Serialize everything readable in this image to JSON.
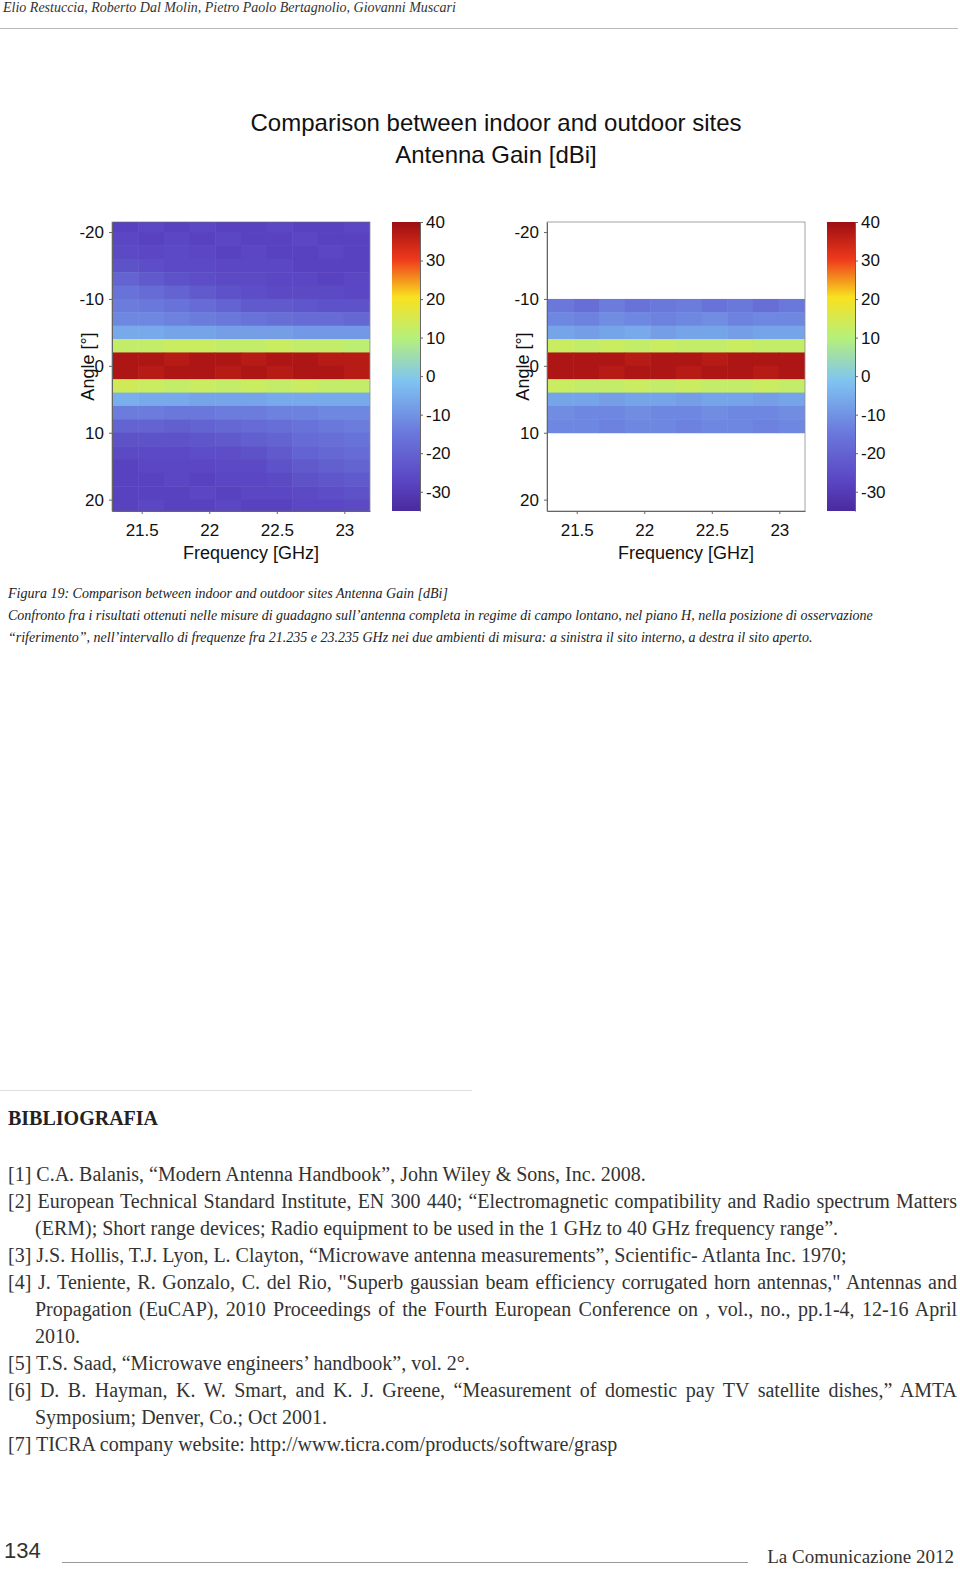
{
  "header": {
    "authors": "Elio Restuccia, Roberto Dal Molin, Pietro Paolo Bertagnolio, Giovanni Muscari"
  },
  "figure": {
    "title": [
      "Comparison between indoor and outdoor sites",
      "Antenna Gain [dBi]"
    ],
    "caption": [
      "Figura 19: Comparison between indoor and outdoor sites Antenna Gain [dBi]",
      "Confronto fra i risultati ottenuti nelle misure di guadagno sull’antenna completa in regime di campo lontano, nel piano H, nella posizione di osservazione",
      "“riferimento”, nell’intervallo di frequenze fra 21.235 e 23.235 GHz nei due ambienti di misura: a sinistra il sito interno, a destra il sito aperto."
    ]
  },
  "chart_data": [
    {
      "type": "heatmap",
      "x_label": "Frequency [GHz]",
      "y_label": "Angle [°]",
      "xlim": [
        21.28,
        23.19
      ],
      "ylim": [
        -21.5,
        21.7
      ],
      "xticks": [
        21.5,
        22,
        22.5,
        23
      ],
      "yticks": [
        -20,
        -10,
        0,
        10,
        20
      ],
      "colorbar_range": [
        -35,
        40
      ],
      "colorbar_ticks": [
        40,
        30,
        20,
        10,
        0,
        -10,
        -20,
        -30
      ],
      "x": [
        21.38,
        21.57,
        21.76,
        21.95,
        22.14,
        22.33,
        22.52,
        22.71,
        22.9,
        23.09
      ],
      "y": [
        -21,
        -19,
        -17,
        -15,
        -13,
        -11,
        -9,
        -7,
        -5,
        -3,
        -1,
        1,
        3,
        5,
        7,
        9,
        11,
        13,
        15,
        17,
        19,
        21
      ],
      "cells": [
        [
          -28,
          -27,
          -28,
          -27,
          -28,
          -28,
          -27,
          -28,
          -28,
          -27
        ],
        [
          -27,
          -28,
          -27,
          -28,
          -27,
          -28,
          -28,
          -27,
          -28,
          -28
        ],
        [
          -26,
          -27,
          -26,
          -27,
          -28,
          -27,
          -28,
          -28,
          -27,
          -28
        ],
        [
          -24,
          -25,
          -26,
          -26,
          -27,
          -27,
          -27,
          -28,
          -28,
          -28
        ],
        [
          -20,
          -22,
          -24,
          -25,
          -26,
          -26,
          -27,
          -27,
          -28,
          -27
        ],
        [
          -16,
          -18,
          -20,
          -22,
          -24,
          -25,
          -26,
          -26,
          -26,
          -27
        ],
        [
          -14,
          -15,
          -16,
          -18,
          -20,
          -22,
          -22,
          -23,
          -24,
          -24
        ],
        [
          -12,
          -12,
          -13,
          -14,
          -15,
          -16,
          -17,
          -18,
          -18,
          -19
        ],
        [
          -6,
          -6,
          -7,
          -7,
          -8,
          -8,
          -8,
          -9,
          -9,
          -9
        ],
        [
          12,
          12,
          13,
          13,
          12,
          12,
          13,
          12,
          12,
          11
        ],
        [
          38,
          38,
          37,
          38,
          38,
          37,
          38,
          38,
          37,
          37
        ],
        [
          38,
          37,
          38,
          38,
          37,
          38,
          37,
          38,
          38,
          37
        ],
        [
          14,
          13,
          12,
          13,
          12,
          13,
          12,
          13,
          12,
          12
        ],
        [
          -5,
          -6,
          -6,
          -7,
          -7,
          -7,
          -6,
          -6,
          -6,
          -6
        ],
        [
          -14,
          -14,
          -15,
          -15,
          -14,
          -14,
          -13,
          -13,
          -12,
          -12
        ],
        [
          -20,
          -20,
          -21,
          -20,
          -19,
          -18,
          -17,
          -16,
          -15,
          -14
        ],
        [
          -24,
          -24,
          -24,
          -23,
          -22,
          -21,
          -20,
          -18,
          -17,
          -16
        ],
        [
          -26,
          -26,
          -26,
          -25,
          -25,
          -24,
          -22,
          -20,
          -19,
          -18
        ],
        [
          -28,
          -27,
          -27,
          -27,
          -26,
          -26,
          -24,
          -22,
          -21,
          -20
        ],
        [
          -28,
          -28,
          -27,
          -28,
          -27,
          -27,
          -26,
          -24,
          -23,
          -22
        ],
        [
          -28,
          -28,
          -28,
          -27,
          -28,
          -27,
          -27,
          -26,
          -25,
          -24
        ],
        [
          -28,
          -27,
          -28,
          -28,
          -27,
          -28,
          -28,
          -27,
          -27,
          -26
        ]
      ]
    },
    {
      "type": "heatmap",
      "x_label": "Frequency [GHz]",
      "y_label": "Angle [°]",
      "xlim": [
        21.28,
        23.19
      ],
      "ylim": [
        -21.5,
        21.7
      ],
      "xticks": [
        21.5,
        22,
        22.5,
        23
      ],
      "yticks": [
        -20,
        -10,
        0,
        10,
        20
      ],
      "colorbar_range": [
        -35,
        40
      ],
      "colorbar_ticks": [
        40,
        30,
        20,
        10,
        0,
        -10,
        -20,
        -30
      ],
      "x": [
        21.38,
        21.57,
        21.76,
        21.95,
        22.14,
        22.33,
        22.52,
        22.71,
        22.9,
        23.09
      ],
      "y": [
        -9,
        -7,
        -5,
        -3,
        -1,
        1,
        3,
        5,
        7,
        9
      ],
      "cells": [
        [
          -15,
          -17,
          -14,
          -16,
          -15,
          -14,
          -16,
          -15,
          -17,
          -15
        ],
        [
          -12,
          -13,
          -11,
          -12,
          -13,
          -12,
          -11,
          -13,
          -12,
          -12
        ],
        [
          -7,
          -8,
          -7,
          -6,
          -8,
          -7,
          -7,
          -8,
          -7,
          -7
        ],
        [
          13,
          12,
          13,
          12,
          13,
          12,
          12,
          13,
          12,
          12
        ],
        [
          38,
          38,
          38,
          37,
          38,
          38,
          37,
          38,
          38,
          38
        ],
        [
          38,
          38,
          37,
          38,
          38,
          37,
          38,
          38,
          37,
          38
        ],
        [
          13,
          12,
          12,
          13,
          12,
          13,
          12,
          12,
          13,
          12
        ],
        [
          -7,
          -7,
          -8,
          -7,
          -7,
          -8,
          -7,
          -7,
          -8,
          -7
        ],
        [
          -11,
          -12,
          -12,
          -11,
          -12,
          -12,
          -11,
          -12,
          -12,
          -11
        ],
        [
          -12,
          -12,
          -13,
          -12,
          -12,
          -13,
          -12,
          -12,
          -13,
          -12
        ]
      ]
    }
  ],
  "bibliography": {
    "heading": "BIBLIOGRAFIA",
    "references": [
      {
        "label": "[1]",
        "text": "C.A. Balanis, “Modern Antenna Handbook”, John Wiley & Sons, Inc. 2008."
      },
      {
        "label": "[2]",
        "text": "European Technical Standard Institute, EN 300 440; “Electromagnetic compatibility and Radio spectrum Matters (ERM); Short range devices; Radio equipment to be used in the 1 GHz to 40 GHz frequency range”."
      },
      {
        "label": "[3]",
        "text": "J.S. Hollis, T.J. Lyon, L. Clayton, “Microwave antenna measurements”, Scientific- Atlanta Inc. 1970;"
      },
      {
        "label": "[4]",
        "text": "J. Teniente, R. Gonzalo, C. del Rio, \"Superb gaussian beam efficiency corrugated horn antennas,\" Antennas and Propagation (EuCAP), 2010 Proceedings of the Fourth European Conference on , vol., no., pp.1-4, 12-16 April 2010."
      },
      {
        "label": "[5]",
        "text": "T.S. Saad, “Microwave  engineers’ handbook”, vol. 2°."
      },
      {
        "label": "[6]",
        "text": "D. B. Hayman, K. W. Smart, and K. J. Greene, “Measurement of domestic pay TV satellite dishes,” AMTA Symposium; Denver, Co.; Oct 2001."
      },
      {
        "label": "[7]",
        "text": "TICRA company website: http://www.ticra.com/products/software/grasp"
      }
    ]
  },
  "footer": {
    "page": "134",
    "journal": "La Comunicazione 2012"
  }
}
